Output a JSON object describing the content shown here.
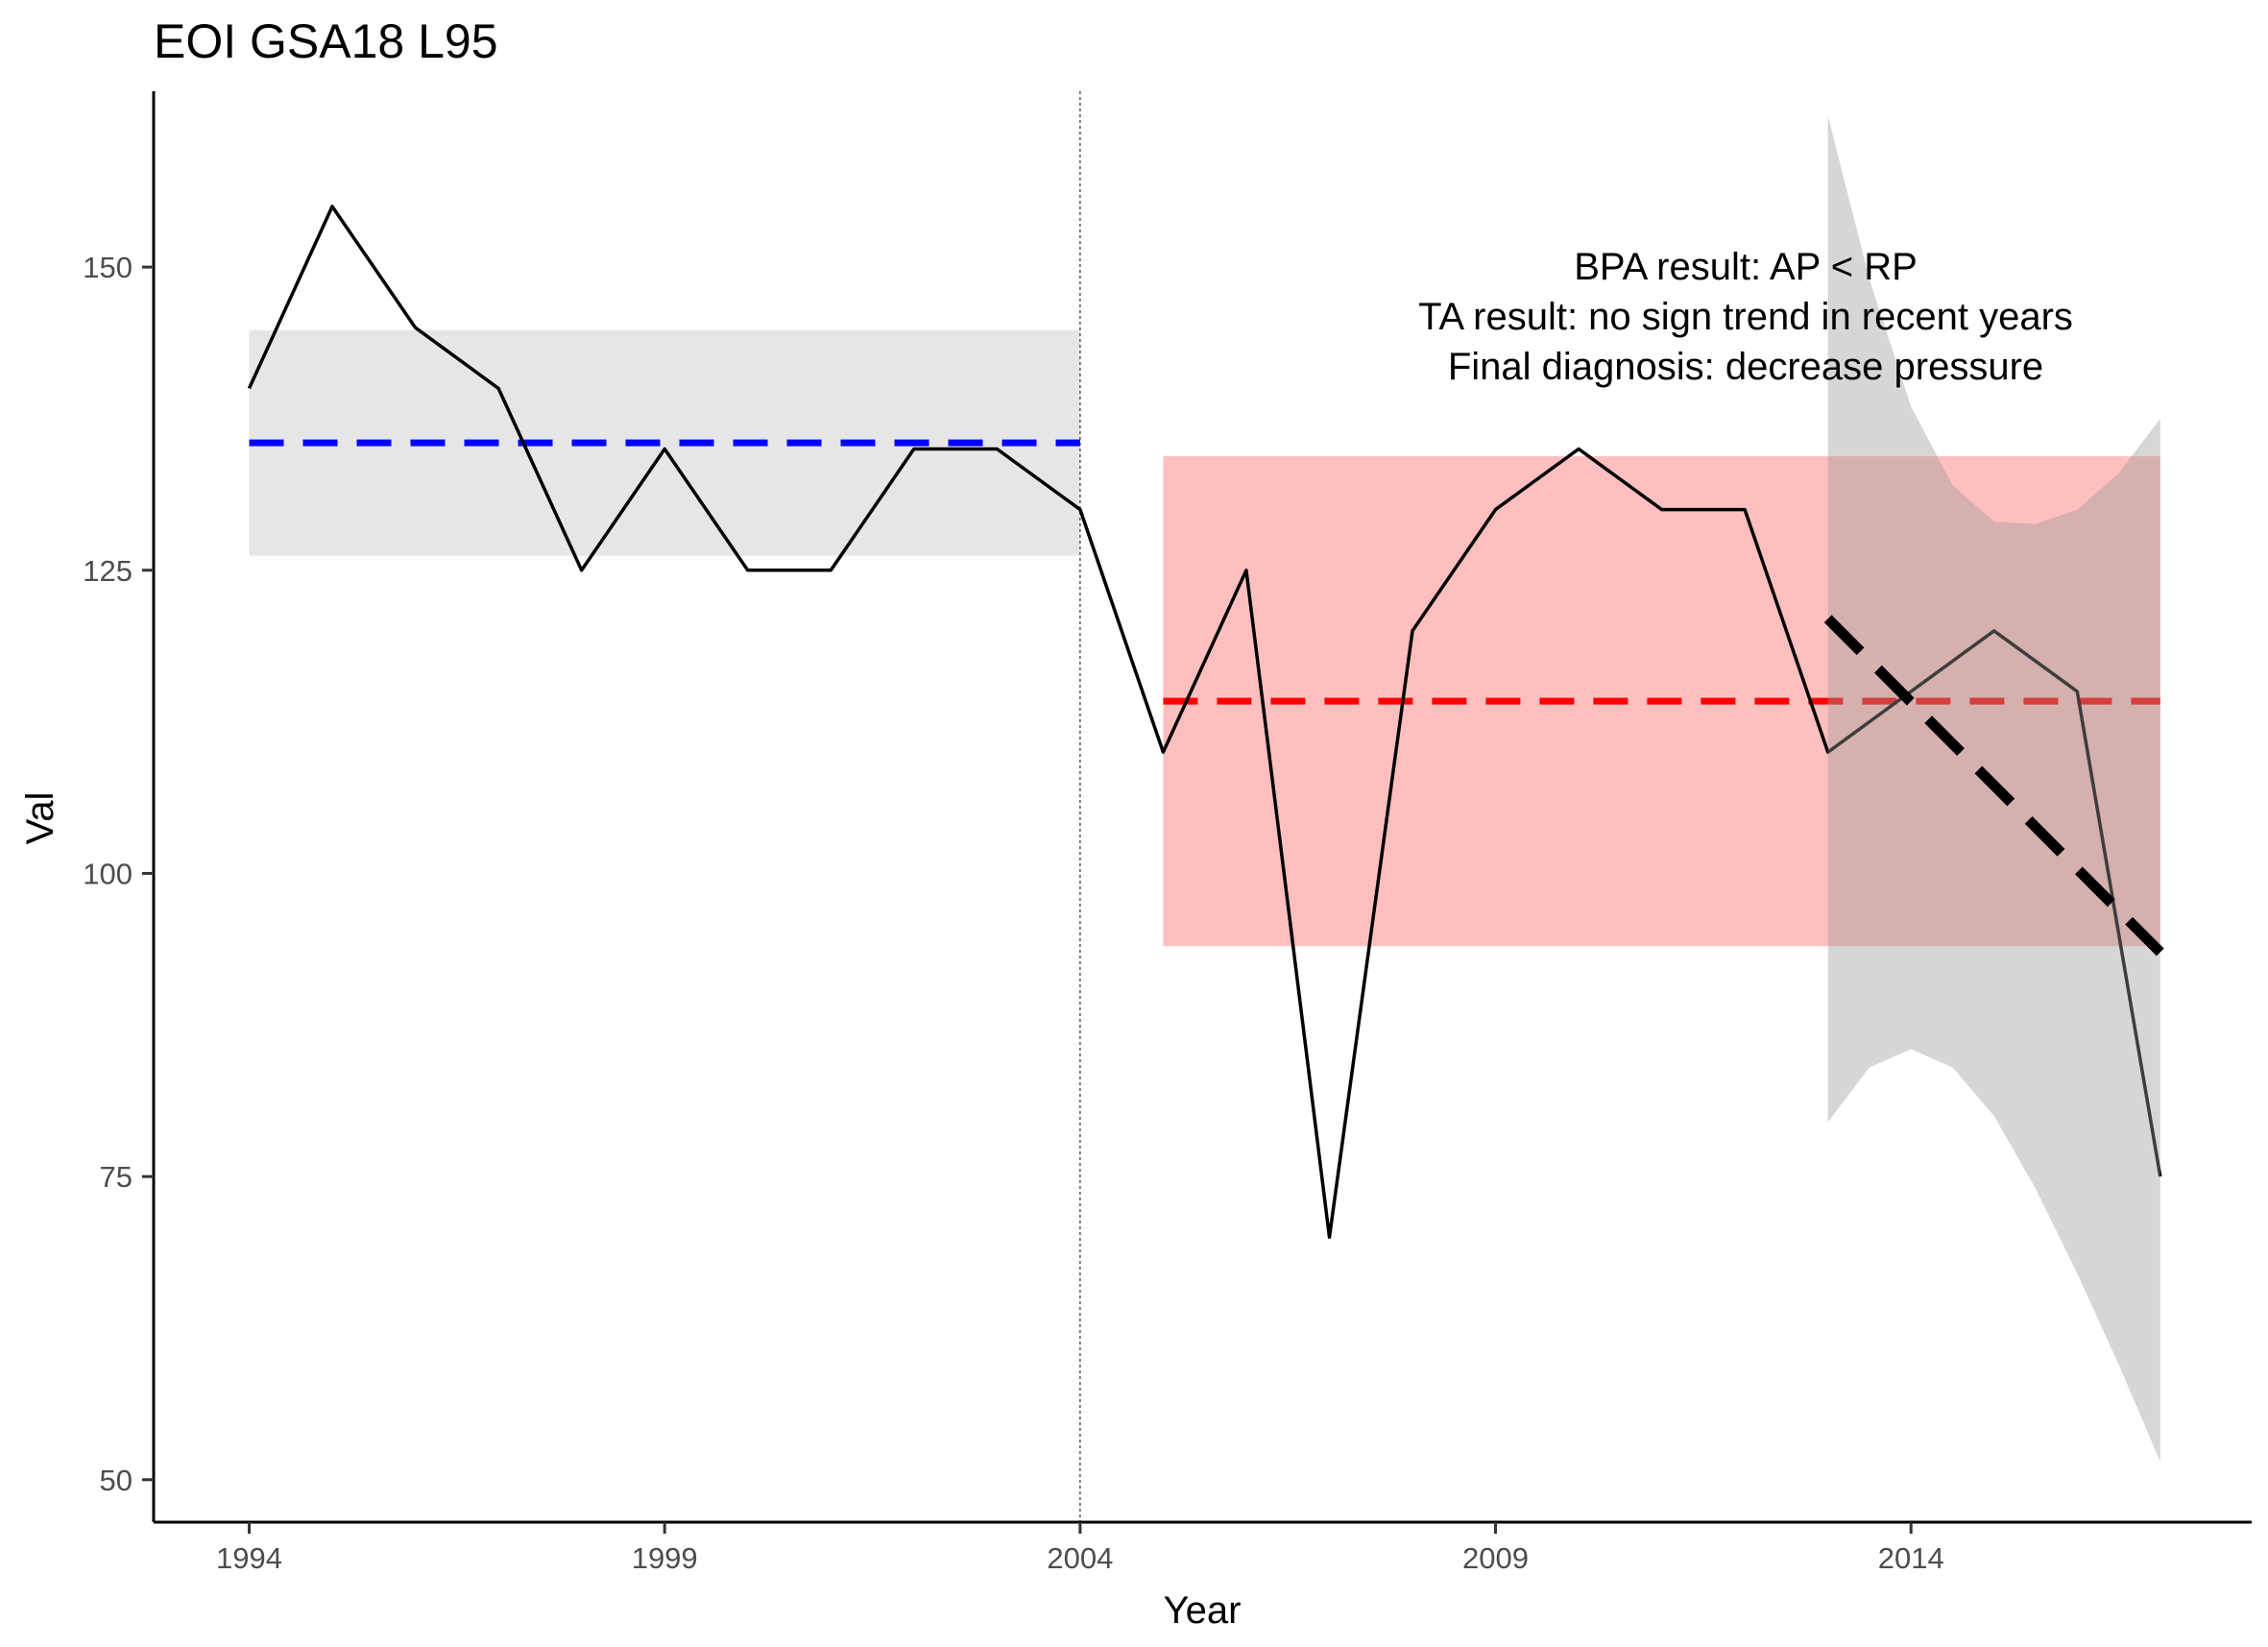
{
  "chart_data": {
    "type": "line",
    "title": "EOI GSA18 L95",
    "xlabel": "Year",
    "ylabel": "Val",
    "xlim": [
      1992.85,
      2018.1
    ],
    "ylim": [
      46.5,
      164.5
    ],
    "x_ticks": [
      {
        "value": 1994,
        "label": "1994"
      },
      {
        "value": 1999,
        "label": "1999"
      },
      {
        "value": 2004,
        "label": "2004"
      },
      {
        "value": 2009,
        "label": "2009"
      },
      {
        "value": 2014,
        "label": "2014"
      }
    ],
    "y_ticks": [
      {
        "value": 50,
        "label": "50"
      },
      {
        "value": 75,
        "label": "75"
      },
      {
        "value": 100,
        "label": "100"
      },
      {
        "value": 125,
        "label": "125"
      },
      {
        "value": 150,
        "label": "150"
      }
    ],
    "grid": false,
    "legend": "none",
    "series": [
      {
        "x": [
          1994,
          1995,
          1996,
          1997,
          1998,
          1999,
          2000,
          2001,
          2002,
          2003,
          2004,
          2005,
          2006,
          2007,
          2008,
          2009,
          2010,
          2011,
          2012,
          2013,
          2014,
          2015,
          2016,
          2017
        ],
        "values": [
          140,
          155,
          145,
          140,
          125,
          135,
          125,
          125,
          135,
          135,
          130,
          110,
          125,
          70,
          120,
          130,
          135,
          130,
          130,
          110,
          115,
          120,
          115,
          75
        ],
        "color": "#000000"
      }
    ],
    "reference_period": {
      "x_start": 1994,
      "x_end": 2004,
      "mean": 135.5,
      "band_low": 126.2,
      "band_high": 144.8,
      "mean_color": "#0000ff",
      "band_color": "#e6e6e6"
    },
    "assessment_period": {
      "x_start": 2005,
      "x_end": 2017,
      "mean": 114.2,
      "band_low": 94.0,
      "band_high": 134.4,
      "mean_color": "#ff0000",
      "band_color": "#ffbfbf"
    },
    "period_divider_x": 2004,
    "trend": {
      "x": [
        2013,
        2017
      ],
      "y": [
        121.0,
        93.5
      ],
      "ci_x": [
        2013,
        2013.5,
        2014,
        2014.5,
        2015,
        2015.5,
        2016,
        2016.5,
        2017
      ],
      "ci_low": [
        79.5,
        84,
        85.5,
        84,
        80,
        74,
        67,
        59.5,
        51.5
      ],
      "ci_high": [
        162.5,
        149,
        138.5,
        132,
        129,
        128.8,
        130,
        133,
        137.5
      ],
      "ci_color": "#999999",
      "line_color": "#000000"
    },
    "annotations": [
      "BPA result: AP < RP",
      "TA result: no sign trend in recent years",
      "Final diagnosis: decrease pressure"
    ]
  }
}
